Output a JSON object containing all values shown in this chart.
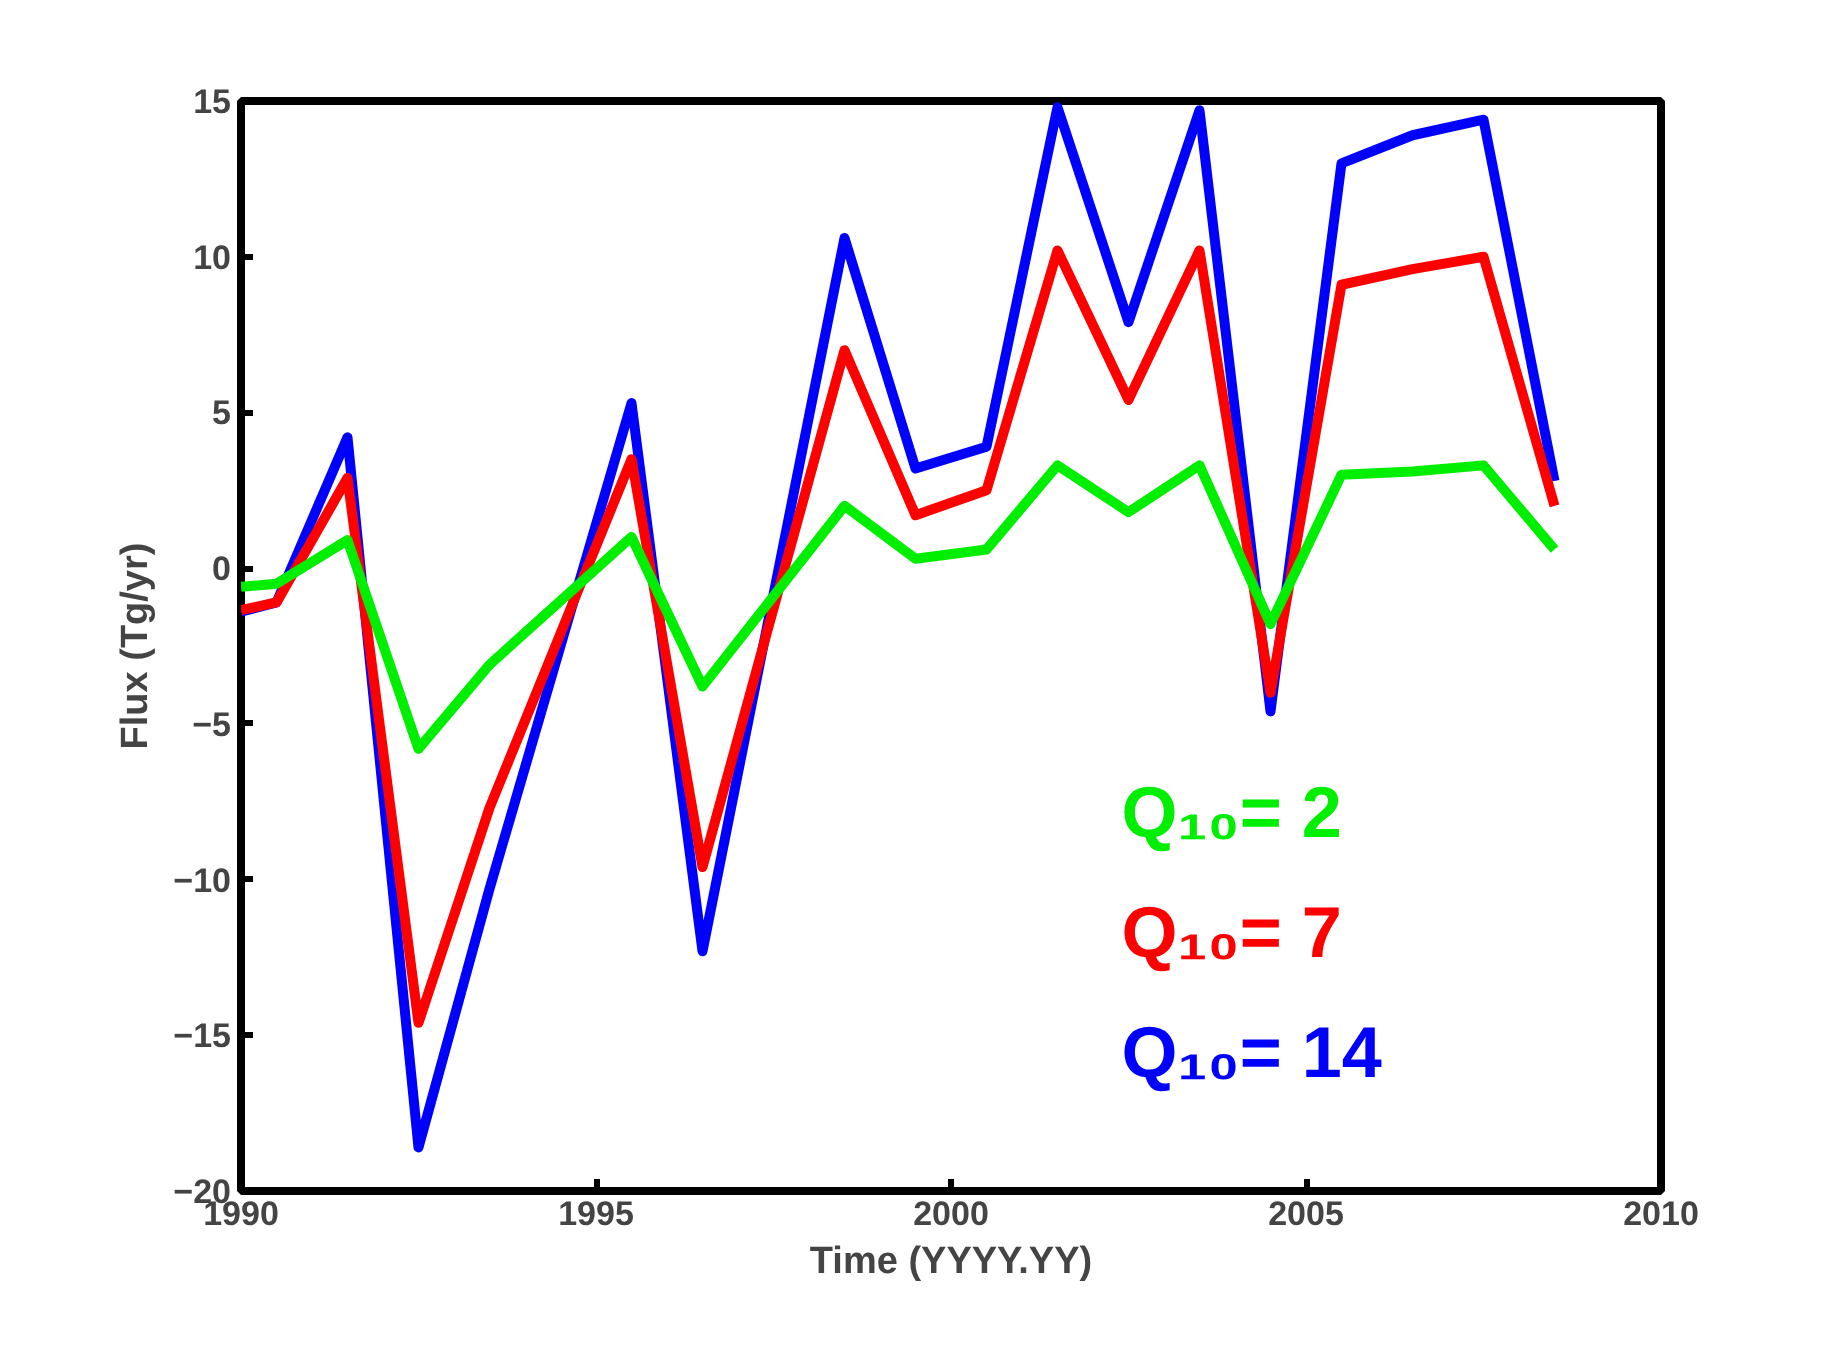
{
  "chart_data": {
    "type": "line",
    "xlabel": "Time (YYYY.YY)",
    "ylabel": "Flux (Tg/yr)",
    "x": [
      1990.0,
      1990.5,
      1991.5,
      1992.5,
      1993.5,
      1995.5,
      1996.5,
      1998.5,
      1999.5,
      2000.5,
      2001.5,
      2002.5,
      2003.5,
      2004.5,
      2005.5,
      2006.5,
      2007.5,
      2008.5
    ],
    "series": [
      {
        "name": "Q₁₀= 2",
        "color": "#00ee00",
        "values": [
          -0.6,
          -0.5,
          0.9,
          -5.8,
          -3.1,
          1.0,
          -3.8,
          2.0,
          0.3,
          0.6,
          3.3,
          1.8,
          3.3,
          -1.8,
          3.0,
          3.1,
          3.3,
          0.6
        ]
      },
      {
        "name": "Q₁₀= 7",
        "color": "#ff0000",
        "values": [
          -1.35,
          -1.1,
          2.9,
          -14.6,
          -7.7,
          3.5,
          -9.6,
          7.0,
          1.7,
          2.5,
          10.2,
          5.4,
          10.2,
          -4.0,
          9.1,
          9.6,
          10.0,
          2.0
        ]
      },
      {
        "name": "Q₁₀= 14",
        "color": "#0000ff",
        "values": [
          -1.4,
          -1.1,
          4.2,
          -18.6,
          -10.3,
          5.3,
          -12.3,
          10.6,
          3.2,
          3.9,
          14.8,
          7.9,
          14.7,
          -4.6,
          13.0,
          13.9,
          14.4,
          2.8
        ]
      }
    ],
    "xlim": [
      1990,
      2010
    ],
    "xticks": [
      1990,
      1995,
      2000,
      2005,
      2010
    ],
    "ylim": [
      -20,
      15
    ],
    "yticks": [
      -20,
      -15,
      -10,
      -5,
      0,
      5,
      10,
      15
    ],
    "grid": false,
    "legend": "bottom right",
    "marker": "none",
    "line_style": "solid"
  }
}
